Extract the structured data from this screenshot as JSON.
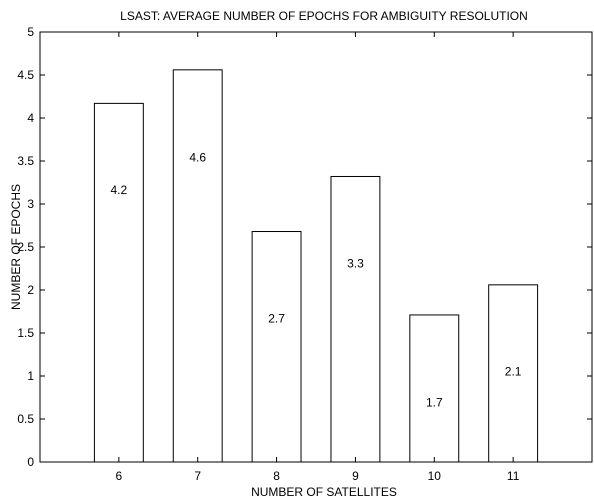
{
  "chart_data": {
    "type": "bar",
    "title": "LSAST: AVERAGE NUMBER OF EPOCHS FOR AMBIGUITY RESOLUTION",
    "xlabel": "NUMBER OF SATELLITES",
    "ylabel": "NUMBER OF EPOCHS",
    "categories": [
      "6",
      "7",
      "8",
      "9",
      "10",
      "11"
    ],
    "x": [
      6,
      7,
      8,
      9,
      10,
      11
    ],
    "values": [
      4.17,
      4.56,
      2.68,
      3.32,
      1.71,
      2.06
    ],
    "data_labels": [
      "4.2",
      "4.6",
      "2.7",
      "3.3",
      "1.7",
      "2.1"
    ],
    "data_label_positions": [
      3.16,
      3.54,
      1.67,
      2.31,
      0.69,
      1.05
    ],
    "xlim": [
      5,
      12
    ],
    "ylim": [
      0,
      5
    ],
    "yticks": [
      0,
      0.5,
      1,
      1.5,
      2,
      2.5,
      3,
      3.5,
      4,
      4.5,
      5
    ],
    "ytick_labels": [
      "0",
      "0.5",
      "1",
      "1.5",
      "2",
      "2.5",
      "3",
      "3.5",
      "4",
      "4.5",
      "5"
    ],
    "bar_color": "#ffffff",
    "edge_color": "#000000",
    "grid": false,
    "legend": "none"
  }
}
